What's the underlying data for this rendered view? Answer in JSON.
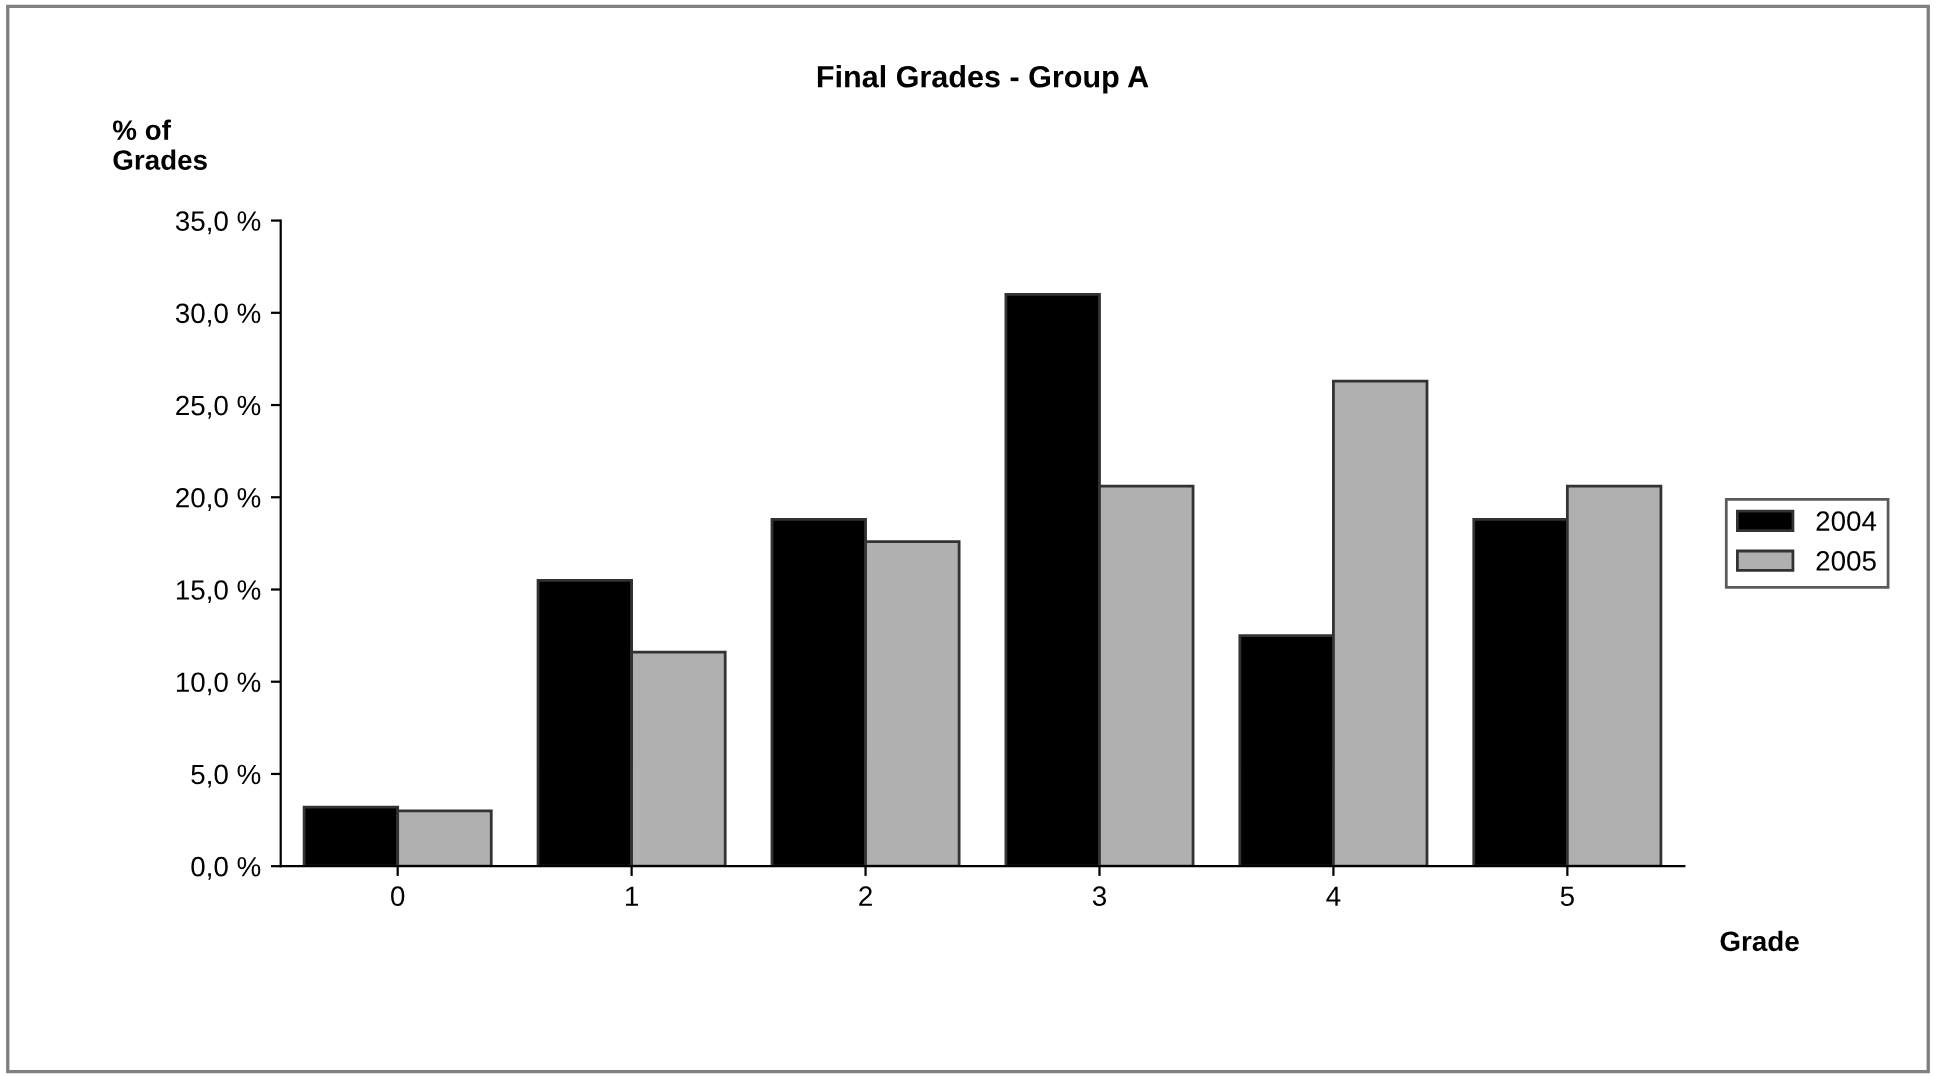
{
  "chart_data": {
    "type": "bar",
    "title": "Final Grades - Group A",
    "ylabel": "% of\nGrades",
    "xlabel": "Grade",
    "categories": [
      "0",
      "1",
      "2",
      "3",
      "4",
      "5"
    ],
    "series": [
      {
        "name": "2004",
        "color": "#000000",
        "values": [
          3.2,
          15.5,
          18.8,
          31.0,
          12.5,
          18.8
        ]
      },
      {
        "name": "2005",
        "color": "#b0b0b0",
        "values": [
          3.0,
          11.6,
          17.6,
          20.6,
          26.3,
          20.6
        ]
      }
    ],
    "ylim": [
      0,
      35
    ],
    "yticks": [
      {
        "value": 0,
        "label": "0,0 %"
      },
      {
        "value": 5,
        "label": "5,0 %"
      },
      {
        "value": 10,
        "label": "10,0 %"
      },
      {
        "value": 15,
        "label": "15,0 %"
      },
      {
        "value": 20,
        "label": "20,0 %"
      },
      {
        "value": 25,
        "label": "25,0 %"
      },
      {
        "value": 30,
        "label": "30,0 %"
      },
      {
        "value": 35,
        "label": "35,0 %"
      }
    ],
    "grid": false,
    "legend": "right"
  }
}
